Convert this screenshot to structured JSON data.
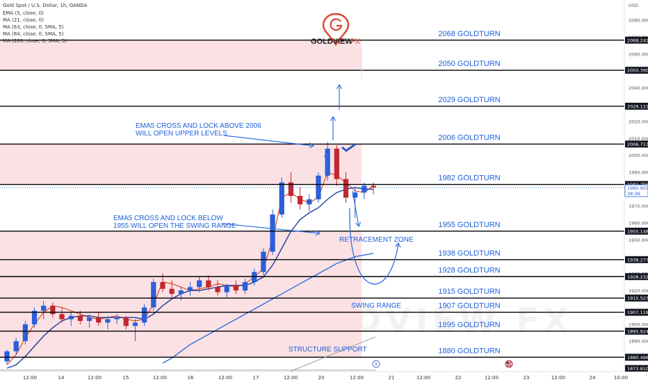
{
  "header": {
    "symbol_line": "Gold Spot / U.S. Dollar, 1h, OANDA",
    "indicators": [
      "EMA (5, close, 0)",
      "MA (21, close, 0)",
      "MA (63, close, 0, SMA, 5)",
      "MA (84, close, 0, SMA, 5)",
      "MA (200, close, 0, SMA, 5)"
    ]
  },
  "brand": {
    "name": "GOLDVIEW",
    "suffix": "FX",
    "watermark": "GOLDVIEW FX"
  },
  "colors": {
    "up": "#2b5fd9",
    "down": "#c0282e",
    "ema5": "#e14b25",
    "ma21": "#1c3c9c",
    "ma200": "#2f6fe0",
    "level_line": "#000000",
    "zone_fill": "#fbe1e4",
    "label": "#1e5fd6"
  },
  "chart_data": {
    "type": "candlestick",
    "y_axis": {
      "label": "USD",
      "range": [
        1872,
        2092
      ],
      "ticks": [
        2080,
        2070,
        2060,
        2040,
        2030,
        2020,
        2010,
        2000,
        1990,
        1970,
        1960,
        1950,
        1930,
        1920,
        1900,
        1890
      ]
    },
    "x_axis": {
      "ticks": [
        "12:00",
        "14",
        "12:00",
        "15",
        "12:00",
        "16",
        "12:00",
        "17",
        "12:00",
        "20",
        "12:00",
        "21",
        "12:00",
        "22",
        "12:00",
        "23",
        "12:00",
        "24",
        "10:00"
      ]
    },
    "levels": [
      {
        "label": "2068 GOLDTURN",
        "price": 2068.241,
        "tag": "2068.241"
      },
      {
        "label": "2050 GOLDTURN",
        "price": 2050.39,
        "tag": "2050.390"
      },
      {
        "label": "2029 GOLDTURN",
        "price": 2029.121,
        "tag": "2029.121"
      },
      {
        "label": "2006 GOLDTURN",
        "price": 2006.713,
        "tag": "2006.713"
      },
      {
        "label": "1982 GOLDTURN",
        "price": 1982.786,
        "tag": "1982.786"
      },
      {
        "label": "1955 GOLDTURN",
        "price": 1955.148,
        "tag": "1955.148"
      },
      {
        "label": "1938 GOLDTURN",
        "price": 1938.277,
        "tag": "1938.277"
      },
      {
        "label": "1928 GOLDTURN",
        "price": 1928.232,
        "tag": "1928.232"
      },
      {
        "label": "1915 GOLDTURN",
        "price": 1915.523,
        "tag": "1915.523"
      },
      {
        "label": "1907 GOLDTURN",
        "price": 1907.118,
        "tag": "1907.118"
      },
      {
        "label": "1895 GOLDTURN",
        "price": 1895.924,
        "tag": "1895.924"
      },
      {
        "label": "1880 GOLDTURN",
        "price": 1880.496,
        "tag": "1880.496"
      }
    ],
    "extra_tag": "1873.810",
    "extra_tag_price": 1873.81,
    "current_price": {
      "price": 1980.955,
      "tag": "1980.955",
      "countdown": "38:36"
    },
    "zones": [
      {
        "from": 2050.39,
        "to": 2068.241
      },
      {
        "from": 1982.786,
        "to": 2006.713
      },
      {
        "from": 1880.496,
        "to": 1955.148
      }
    ],
    "annotations": [
      {
        "lines": [
          "EMA5 CROSS AND LOCK ABOVE 2006",
          "WILL OPEN UPPER LEVELS"
        ]
      },
      {
        "lines": [
          "EMA5 CROSS AND LOCK BELOW",
          "1955 WILL OPEN THE SWING RANGE"
        ]
      },
      {
        "lines": [
          "RETRACEMENT ZONE"
        ]
      },
      {
        "lines": [
          "SWING RANGE"
        ]
      },
      {
        "lines": [
          "STRUCTURE SUPPORT"
        ]
      }
    ],
    "series": [
      {
        "name": "EMA (5, close, 0)",
        "values": [
          1876,
          1882,
          1892,
          1900,
          1907,
          1911,
          1910,
          1908,
          1906,
          1904,
          1903,
          1904,
          1905,
          1903,
          1902,
          1903,
          1912,
          1925,
          1924,
          1922,
          1920,
          1921,
          1922,
          1924,
          1923,
          1922,
          1924,
          1928,
          1933,
          1950,
          1975,
          1978,
          1974,
          1972,
          1975,
          1990,
          1988,
          1984,
          1979,
          1978,
          1982
        ]
      },
      {
        "name": "MA (21, close, 0)",
        "values": [
          1874,
          1876,
          1881,
          1887,
          1893,
          1898,
          1902,
          1904,
          1905,
          1905,
          1904,
          1904,
          1904,
          1904,
          1904,
          1903,
          1906,
          1911,
          1915,
          1918,
          1920,
          1920,
          1921,
          1922,
          1923,
          1923,
          1923,
          1925,
          1928,
          1935,
          1945,
          1955,
          1962,
          1966,
          1969,
          1974,
          1978,
          1980,
          1981,
          1980,
          1980
        ]
      },
      {
        "name": "MA (200, close, 0, SMA, 5)",
        "values": [
          null,
          null,
          null,
          null,
          null,
          null,
          null,
          null,
          null,
          null,
          null,
          null,
          null,
          null,
          null,
          null,
          null,
          1877,
          1880,
          1884,
          1888,
          1891,
          1894,
          1897,
          1900,
          1903,
          1906,
          1909,
          1912,
          1915,
          1918,
          1921,
          1924,
          1927,
          1930,
          1933,
          1936,
          1938,
          1940,
          1941,
          1942
        ]
      }
    ],
    "candles": [
      [
        1878,
        1885,
        1876,
        1884
      ],
      [
        1884,
        1892,
        1882,
        1890
      ],
      [
        1890,
        1902,
        1888,
        1900
      ],
      [
        1900,
        1910,
        1898,
        1908
      ],
      [
        1908,
        1914,
        1903,
        1911
      ],
      [
        1911,
        1913,
        1904,
        1906
      ],
      [
        1906,
        1910,
        1901,
        1903
      ],
      [
        1903,
        1907,
        1899,
        1905
      ],
      [
        1905,
        1908,
        1900,
        1902
      ],
      [
        1902,
        1906,
        1898,
        1904
      ],
      [
        1904,
        1907,
        1899,
        1901
      ],
      [
        1901,
        1905,
        1897,
        1903
      ],
      [
        1903,
        1906,
        1900,
        1904
      ],
      [
        1904,
        1905,
        1897,
        1899
      ],
      [
        1899,
        1903,
        1890,
        1901
      ],
      [
        1901,
        1912,
        1899,
        1910
      ],
      [
        1910,
        1927,
        1908,
        1925
      ],
      [
        1925,
        1930,
        1919,
        1921
      ],
      [
        1921,
        1926,
        1916,
        1918
      ],
      [
        1918,
        1922,
        1914,
        1920
      ],
      [
        1920,
        1925,
        1917,
        1922
      ],
      [
        1922,
        1928,
        1919,
        1926
      ],
      [
        1926,
        1929,
        1920,
        1922
      ],
      [
        1922,
        1926,
        1917,
        1919
      ],
      [
        1919,
        1924,
        1916,
        1923
      ],
      [
        1923,
        1926,
        1918,
        1920
      ],
      [
        1920,
        1927,
        1918,
        1925
      ],
      [
        1925,
        1933,
        1923,
        1931
      ],
      [
        1931,
        1945,
        1929,
        1943
      ],
      [
        1943,
        1968,
        1941,
        1965
      ],
      [
        1965,
        1987,
        1963,
        1984
      ],
      [
        1984,
        1990,
        1972,
        1976
      ],
      [
        1976,
        1981,
        1968,
        1971
      ],
      [
        1971,
        1977,
        1967,
        1974
      ],
      [
        1974,
        1990,
        1972,
        1988
      ],
      [
        1988,
        2008,
        1985,
        2004
      ],
      [
        2004,
        2006,
        1982,
        1986
      ],
      [
        1986,
        1990,
        1972,
        1975
      ],
      [
        1975,
        1981,
        1963,
        1978
      ],
      [
        1978,
        1984,
        1974,
        1982
      ],
      [
        1982,
        1984,
        1977,
        1981
      ]
    ]
  }
}
